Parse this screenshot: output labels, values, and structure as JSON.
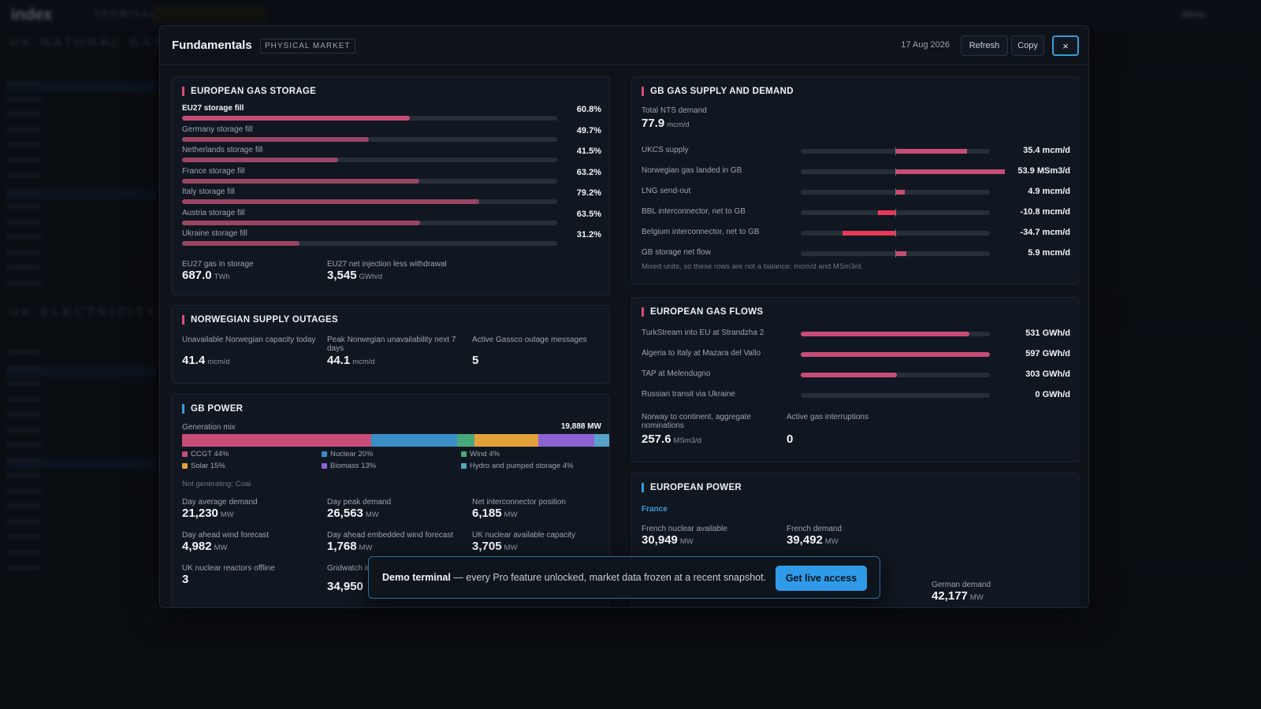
{
  "background": {
    "logo": "index",
    "logo_sub": "TERMINAL",
    "menu_label": "Menu",
    "section1": "UK NATURAL GAS",
    "section2": "UK ELECTRICITY BASE"
  },
  "modal": {
    "title": "Fundamentals",
    "badge": "PHYSICAL MARKET",
    "date": "17 Aug 2026",
    "refresh_label": "Refresh",
    "copy_label": "Copy",
    "close_label": "×"
  },
  "storage": {
    "title": "EUROPEAN GAS STORAGE",
    "rows": [
      {
        "label": "EU27 storage fill",
        "value": "60.8%",
        "fraction": 0.608
      },
      {
        "label": "Germany storage fill",
        "value": "49.7%",
        "fraction": 0.497
      },
      {
        "label": "Netherlands storage fill",
        "value": "41.5%",
        "fraction": 0.415
      },
      {
        "label": "France storage fill",
        "value": "63.2%",
        "fraction": 0.632
      },
      {
        "label": "Italy storage fill",
        "value": "79.2%",
        "fraction": 0.792
      },
      {
        "label": "Austria storage fill",
        "value": "63.5%",
        "fraction": 0.635
      },
      {
        "label": "Ukraine storage fill",
        "value": "31.2%",
        "fraction": 0.312
      }
    ],
    "gas_in_storage_label": "EU27 gas in storage",
    "gas_in_storage_value": "687.0",
    "gas_in_storage_unit": "TWh",
    "net_injection_label": "EU27 net injection less withdrawal",
    "net_injection_value": "3,545",
    "net_injection_unit": "GWh/d"
  },
  "outages": {
    "title": "NORWEGIAN SUPPLY OUTAGES",
    "items": [
      {
        "label": "Unavailable Norwegian capacity today",
        "value": "41.4",
        "unit": "mcm/d"
      },
      {
        "label": "Peak Norwegian unavailability next 7 days",
        "value": "44.1",
        "unit": "mcm/d"
      },
      {
        "label": "Active Gassco outage messages",
        "value": "5",
        "unit": ""
      }
    ]
  },
  "gb_power": {
    "title": "GB POWER",
    "mix_label": "Generation mix",
    "mix_total": "19,888 MW",
    "mix": [
      {
        "label": "CCGT 44%",
        "share": 44,
        "color": "#c84d76"
      },
      {
        "label": "Nuclear 20%",
        "share": 20,
        "color": "#3b8fc7"
      },
      {
        "label": "Wind 4%",
        "share": 4,
        "color": "#48a87a"
      },
      {
        "label": "Solar 15%",
        "share": 15,
        "color": "#e3a13a"
      },
      {
        "label": "Biomass 13%",
        "share": 13,
        "color": "#8d62d3"
      },
      {
        "label": "Hydro and pumped storage 4%",
        "share": 4,
        "color": "#55a3c9"
      }
    ],
    "not_generating": "Not generating: Coal",
    "metrics": [
      {
        "label": "Day average demand",
        "value": "21,230",
        "unit": "MW"
      },
      {
        "label": "Day peak demand",
        "value": "26,563",
        "unit": "MW"
      },
      {
        "label": "Net interconnector position",
        "value": "6,185",
        "unit": "MW"
      },
      {
        "label": "Day ahead wind forecast",
        "value": "4,982",
        "unit": "MW"
      },
      {
        "label": "Day ahead embedded wind forecast",
        "value": "1,768",
        "unit": "MW"
      },
      {
        "label": "UK nuclear available capacity",
        "value": "3,705",
        "unit": "MW"
      },
      {
        "label": "UK nuclear reactors offline",
        "value": "3",
        "unit": ""
      },
      {
        "label": "Gridwatch in embedded",
        "value": "34,950",
        "unit": ""
      }
    ]
  },
  "gb_supply": {
    "title": "GB GAS SUPPLY AND DEMAND",
    "nts_label": "Total NTS demand",
    "nts_value": "77.9",
    "nts_unit": "mcm/d",
    "rows": [
      {
        "label": "UKCS supply",
        "value": "35.4 mcm/d",
        "signed_fraction": 0.38
      },
      {
        "label": "Norwegian gas landed in GB",
        "value": "53.9 MSm3/d",
        "signed_fraction": 0.58
      },
      {
        "label": "LNG send-out",
        "value": "4.9 mcm/d",
        "signed_fraction": 0.05
      },
      {
        "label": "BBL interconnector, net to GB",
        "value": "-10.8 mcm/d",
        "signed_fraction": -0.09
      },
      {
        "label": "Belgium interconnector, net to GB",
        "value": "-34.7 mcm/d",
        "signed_fraction": -0.28
      },
      {
        "label": "GB storage net flow",
        "value": "5.9 mcm/d",
        "signed_fraction": 0.06
      }
    ],
    "note": "Mixed units, so these rows are not a balance: mcm/d and MSm3/d."
  },
  "flows": {
    "title": "EUROPEAN GAS FLOWS",
    "rows": [
      {
        "label": "TurkStream into EU at Strandzha 2",
        "value": "531 GWh/d",
        "fraction": 0.89
      },
      {
        "label": "Algeria to Italy at Mazara del Vallo",
        "value": "597 GWh/d",
        "fraction": 1.0
      },
      {
        "label": "TAP at Melendugno",
        "value": "303 GWh/d",
        "fraction": 0.51
      },
      {
        "label": "Russian transit via Ukraine",
        "value": "0 GWh/d",
        "fraction": 0
      }
    ],
    "norway_label": "Norway to continent, aggregate nominations",
    "norway_value": "257.6",
    "norway_unit": "MSm3/d",
    "interruptions_label": "Active gas interruptions",
    "interruptions_value": "0"
  },
  "eu_power": {
    "title": "EUROPEAN POWER",
    "country": "France",
    "nuclear_label": "French nuclear available",
    "nuclear_value": "30,949",
    "nuclear_unit": "MW",
    "demand_label": "French demand",
    "demand_value": "39,492",
    "demand_unit": "MW",
    "german_demand_label": "German demand",
    "german_demand_value": "42,177",
    "german_demand_unit": "MW"
  },
  "banner": {
    "strong": "Demo terminal",
    "text": " — every Pro feature unlocked, market data frozen at a recent snapshot.",
    "button": "Get live access"
  }
}
